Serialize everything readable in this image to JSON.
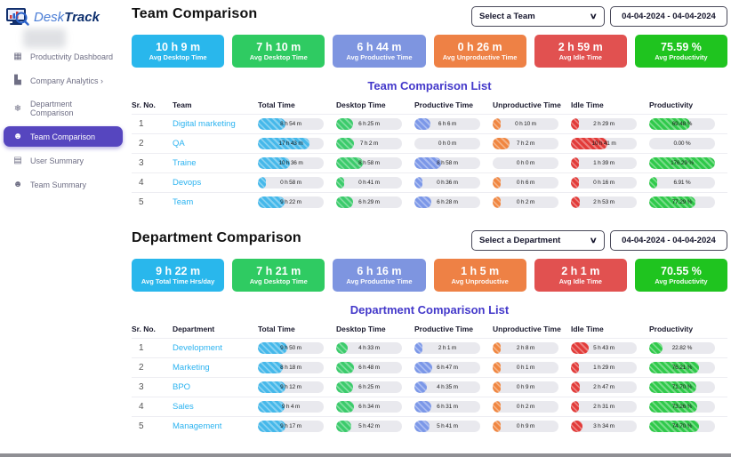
{
  "brand": {
    "name_light": "Desk",
    "name_bold": "Track"
  },
  "colors": {
    "cyan": "#29b7ec",
    "green": "#2fcb62",
    "periwinkle": "#7e95e0",
    "orange": "#ee8145",
    "red": "#e15150",
    "bright_green": "#1fc41f",
    "heading_accent": "#4338ca",
    "sidebar_active": "#5646bf",
    "link": "#2cb3f0",
    "pill_cyan": "#45b8ea",
    "pill_green": "#3bcb6b",
    "pill_blue": "#7b97e8",
    "pill_orange": "#f0853f",
    "pill_red": "#e23a38",
    "pill_pgreen": "#2fc94a"
  },
  "sidebar": {
    "items": [
      {
        "label": "Productivity Dashboard",
        "icon": "dashboard-grid-icon",
        "glyph": "▦",
        "active": false
      },
      {
        "label": "Company Analytics  ›",
        "icon": "analytics-chart-icon",
        "glyph": "▙",
        "active": false
      },
      {
        "label": "Department Comparison",
        "icon": "department-snowflake-icon",
        "glyph": "❄",
        "active": false
      },
      {
        "label": "Team Comparison",
        "icon": "team-people-icon",
        "glyph": "☻",
        "active": true
      },
      {
        "label": "User Summary",
        "icon": "user-document-icon",
        "glyph": "▤",
        "active": false
      },
      {
        "label": "Team Summary",
        "icon": "team-people-icon",
        "glyph": "☻",
        "active": false
      }
    ]
  },
  "pill_column_colors": [
    "pill_cyan",
    "pill_green",
    "pill_blue",
    "pill_orange",
    "pill_red",
    "pill_pgreen"
  ],
  "team": {
    "title": "Team Comparison",
    "select_label": "Select a Team",
    "date_range": "04-04-2024 - 04-04-2024",
    "cards": [
      {
        "value": "10 h 9 m",
        "label": "Avg Desktop Time",
        "color": "cyan"
      },
      {
        "value": "7 h 10 m",
        "label": "Avg Desktop Time",
        "color": "green"
      },
      {
        "value": "6 h 44 m",
        "label": "Avg Productive Time",
        "color": "periwinkle"
      },
      {
        "value": "0 h 26 m",
        "label": "Avg Unproductive Time",
        "color": "orange"
      },
      {
        "value": "2 h 59 m",
        "label": "Avg Idle Time",
        "color": "red"
      },
      {
        "value": "75.59 %",
        "label": "Avg Productivity",
        "color": "bright_green"
      }
    ],
    "list_title": "Team Comparison List",
    "headers": [
      "Sr. No.",
      "Team",
      "Total Time",
      "Desktop Time",
      "Productive Time",
      "Unproductive Time",
      "Idle Time",
      "Productivity"
    ],
    "rows": [
      {
        "sr": "1",
        "name": "Digital marketing",
        "cells": [
          {
            "text": "8 h 54 m",
            "fill": 42
          },
          {
            "text": "6 h 25 m",
            "fill": 25
          },
          {
            "text": "6 h 6 m",
            "fill": 24
          },
          {
            "text": "0 h 10 m",
            "fill": 3
          },
          {
            "text": "2 h 29 m",
            "fill": 12
          },
          {
            "text": "69.48 %",
            "fill": 62
          }
        ]
      },
      {
        "sr": "2",
        "name": "QA",
        "cells": [
          {
            "text": "17 h 43 m",
            "fill": 78
          },
          {
            "text": "7 h 2 m",
            "fill": 27
          },
          {
            "text": "0 h 0 m",
            "fill": 0
          },
          {
            "text": "7 h 2 m",
            "fill": 26
          },
          {
            "text": "10 h 41 m",
            "fill": 55
          },
          {
            "text": "0.00 %",
            "fill": 0
          }
        ]
      },
      {
        "sr": "3",
        "name": "Traine",
        "cells": [
          {
            "text": "10 h 36 m",
            "fill": 48
          },
          {
            "text": "8 h 58 m",
            "fill": 40
          },
          {
            "text": "8 h 58 m",
            "fill": 40
          },
          {
            "text": "0 h 0 m",
            "fill": 0
          },
          {
            "text": "1 h 39 m",
            "fill": 8
          },
          {
            "text": "176.29 %",
            "fill": 100
          }
        ]
      },
      {
        "sr": "4",
        "name": "Devops",
        "cells": [
          {
            "text": "0 h 58 m",
            "fill": 4
          },
          {
            "text": "0 h 41 m",
            "fill": 3
          },
          {
            "text": "0 h 36 m",
            "fill": 3
          },
          {
            "text": "0 h 6 m",
            "fill": 2
          },
          {
            "text": "0 h 16 m",
            "fill": 2
          },
          {
            "text": "6.91 %",
            "fill": 7
          }
        ]
      },
      {
        "sr": "5",
        "name": "Team",
        "cells": [
          {
            "text": "9 h 22 m",
            "fill": 40
          },
          {
            "text": "6 h 29 m",
            "fill": 26
          },
          {
            "text": "6 h 28 m",
            "fill": 26
          },
          {
            "text": "0 h 2 m",
            "fill": 1
          },
          {
            "text": "2 h 53 m",
            "fill": 14
          },
          {
            "text": "77.29 %",
            "fill": 70
          }
        ]
      }
    ]
  },
  "dept": {
    "title": "Department Comparison",
    "select_label": "Select a Department",
    "date_range": "04-04-2024 - 04-04-2024",
    "cards": [
      {
        "value": "9 h 22 m",
        "label": "Avg Total Time Hrs/day",
        "color": "cyan"
      },
      {
        "value": "7 h 21 m",
        "label": "Avg Desktop Time",
        "color": "green"
      },
      {
        "value": "6 h 16 m",
        "label": "Avg Productive Time",
        "color": "periwinkle"
      },
      {
        "value": "1 h 5 m",
        "label": "Avg Unproductive",
        "color": "orange"
      },
      {
        "value": "2 h 1 m",
        "label": "Avg Idle Time",
        "color": "red"
      },
      {
        "value": "70.55 %",
        "label": "Avg Productivity",
        "color": "bright_green"
      }
    ],
    "list_title": "Department Comparison List",
    "headers": [
      "Sr. No.",
      "Department",
      "Total Time",
      "Desktop Time",
      "Productive Time",
      "Unproductive Time",
      "Idle Time",
      "Productivity"
    ],
    "rows": [
      {
        "sr": "1",
        "name": "Development",
        "cells": [
          {
            "text": "9 h 50 m",
            "fill": 44
          },
          {
            "text": "4 h 33 m",
            "fill": 17
          },
          {
            "text": "2 h 1 m",
            "fill": 9
          },
          {
            "text": "2 h 8 m",
            "fill": 9
          },
          {
            "text": "5 h 43 m",
            "fill": 27
          },
          {
            "text": "22.82 %",
            "fill": 20
          }
        ]
      },
      {
        "sr": "2",
        "name": "Marketing",
        "cells": [
          {
            "text": "8 h 18 m",
            "fill": 38
          },
          {
            "text": "6 h 48 m",
            "fill": 27
          },
          {
            "text": "6 h 47 m",
            "fill": 27
          },
          {
            "text": "0 h 1 m",
            "fill": 1
          },
          {
            "text": "1 h 29 m",
            "fill": 7
          },
          {
            "text": "76.21 %",
            "fill": 76
          }
        ]
      },
      {
        "sr": "3",
        "name": "BPO",
        "cells": [
          {
            "text": "9 h 12 m",
            "fill": 42
          },
          {
            "text": "6 h 25 m",
            "fill": 26
          },
          {
            "text": "4 h 35 m",
            "fill": 19
          },
          {
            "text": "0 h 9 m",
            "fill": 2
          },
          {
            "text": "2 h 47 m",
            "fill": 13
          },
          {
            "text": "71.70 %",
            "fill": 72
          }
        ]
      },
      {
        "sr": "4",
        "name": "Sales",
        "cells": [
          {
            "text": "9 h 4 m",
            "fill": 41
          },
          {
            "text": "6 h 34 m",
            "fill": 27
          },
          {
            "text": "6 h 31 m",
            "fill": 26
          },
          {
            "text": "0 h 2 m",
            "fill": 1
          },
          {
            "text": "2 h 31 m",
            "fill": 12
          },
          {
            "text": "73.26 %",
            "fill": 73
          }
        ]
      },
      {
        "sr": "5",
        "name": "Management",
        "cells": [
          {
            "text": "9 h 17 m",
            "fill": 42
          },
          {
            "text": "5 h 42 m",
            "fill": 23
          },
          {
            "text": "5 h 41 m",
            "fill": 23
          },
          {
            "text": "0 h 9 m",
            "fill": 2
          },
          {
            "text": "3 h 34 m",
            "fill": 17
          },
          {
            "text": "74.70 %",
            "fill": 75
          }
        ]
      }
    ]
  }
}
